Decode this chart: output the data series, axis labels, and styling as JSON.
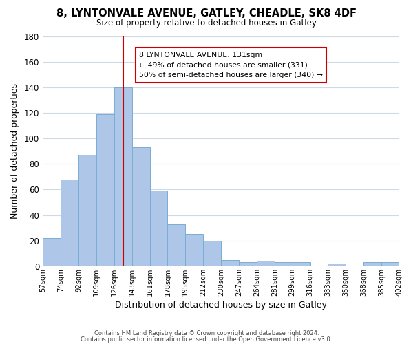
{
  "title_line1": "8, LYNTONVALE AVENUE, GATLEY, CHEADLE, SK8 4DF",
  "title_line2": "Size of property relative to detached houses in Gatley",
  "xlabel": "Distribution of detached houses by size in Gatley",
  "ylabel": "Number of detached properties",
  "bin_edges": [
    0,
    1,
    2,
    3,
    4,
    5,
    6,
    7,
    8,
    9,
    10,
    11,
    12,
    13,
    14,
    15,
    16,
    17,
    18,
    19,
    20
  ],
  "bin_labels": [
    "57sqm",
    "74sqm",
    "92sqm",
    "109sqm",
    "126sqm",
    "143sqm",
    "161sqm",
    "178sqm",
    "195sqm",
    "212sqm",
    "230sqm",
    "247sqm",
    "264sqm",
    "281sqm",
    "299sqm",
    "316sqm",
    "333sqm",
    "350sqm",
    "368sqm",
    "385sqm",
    "402sqm"
  ],
  "bar_heights": [
    22,
    68,
    87,
    119,
    140,
    93,
    59,
    33,
    25,
    20,
    5,
    3,
    4,
    3,
    3,
    0,
    2,
    0,
    3,
    3
  ],
  "bar_color": "#aec6e8",
  "bar_edge_color": "#7aadd4",
  "vline_x": 4.5,
  "vline_color": "#cc0000",
  "annotation_text": "8 LYNTONVALE AVENUE: 131sqm\n← 49% of detached houses are smaller (331)\n50% of semi-detached houses are larger (340) →",
  "annotation_box_edge": "#cc0000",
  "ylim": [
    0,
    180
  ],
  "yticks": [
    0,
    20,
    40,
    60,
    80,
    100,
    120,
    140,
    160,
    180
  ],
  "footer_line1": "Contains HM Land Registry data © Crown copyright and database right 2024.",
  "footer_line2": "Contains public sector information licensed under the Open Government Licence v3.0.",
  "background_color": "#ffffff",
  "grid_color": "#cdd9e5"
}
